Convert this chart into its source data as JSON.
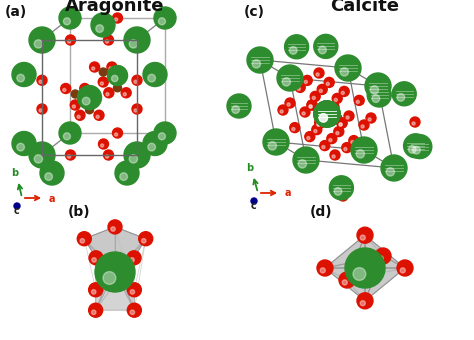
{
  "title_aragonite": "Aragonite",
  "title_calcite": "Calcite",
  "label_a": "(a)",
  "label_b": "(b)",
  "label_c": "(c)",
  "label_d": "(d)",
  "bg_color": "#ffffff",
  "green_dark": "#1a7a1a",
  "green_med": "#2d8c2d",
  "green_light": "#3aaa3a",
  "red_color": "#dd1100",
  "brown_color": "#7a3b10",
  "gray_face": "#b8b8b8",
  "gray_edge": "#707070",
  "blue_dot": "#00008B",
  "figsize": [
    4.74,
    3.4
  ],
  "dpi": 100
}
